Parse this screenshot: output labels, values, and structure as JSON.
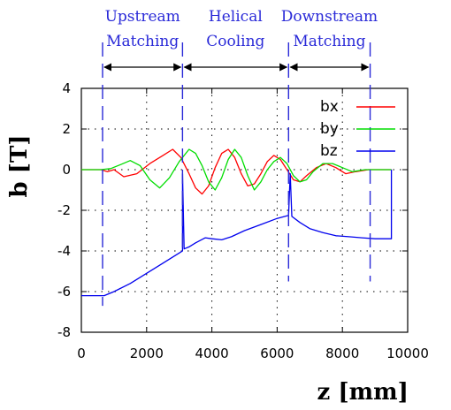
{
  "chart_data": {
    "type": "line",
    "title": "",
    "xlabel": "z [mm]",
    "ylabel": "b [T]",
    "xlim": [
      0,
      10000
    ],
    "ylim": [
      -8,
      4
    ],
    "xticks": [
      0,
      2000,
      4000,
      6000,
      8000,
      10000
    ],
    "yticks": [
      -8,
      -6,
      -4,
      -2,
      0,
      2,
      4
    ],
    "grid": true,
    "legend": "top-right",
    "regions": [
      {
        "label_line1": "Upstream",
        "label_line2": "Matching",
        "z_start": 650,
        "z_end": 3100
      },
      {
        "label_line1": "Helical",
        "label_line2": "Cooling",
        "z_start": 3100,
        "z_end": 6350
      },
      {
        "label_line1": "Downstream",
        "label_line2": "Matching",
        "z_start": 6350,
        "z_end": 8850
      }
    ],
    "boundaries": [
      650,
      3100,
      6350,
      8850
    ],
    "series": [
      {
        "name": "bx",
        "color": "#ff0000",
        "points": [
          [
            0,
            0
          ],
          [
            600,
            0
          ],
          [
            800,
            -0.1
          ],
          [
            1000,
            0
          ],
          [
            1300,
            -0.35
          ],
          [
            1700,
            -0.2
          ],
          [
            2100,
            0.3
          ],
          [
            2500,
            0.7
          ],
          [
            2800,
            1.0
          ],
          [
            3050,
            0.6
          ],
          [
            3300,
            -0.2
          ],
          [
            3500,
            -0.9
          ],
          [
            3700,
            -1.2
          ],
          [
            3900,
            -0.8
          ],
          [
            4100,
            0.1
          ],
          [
            4300,
            0.8
          ],
          [
            4500,
            1.0
          ],
          [
            4700,
            0.6
          ],
          [
            4900,
            -0.2
          ],
          [
            5100,
            -0.8
          ],
          [
            5300,
            -0.7
          ],
          [
            5500,
            -0.2
          ],
          [
            5700,
            0.4
          ],
          [
            5900,
            0.7
          ],
          [
            6100,
            0.5
          ],
          [
            6300,
            0.0
          ],
          [
            6500,
            -0.5
          ],
          [
            6700,
            -0.6
          ],
          [
            6900,
            -0.3
          ],
          [
            7200,
            0.1
          ],
          [
            7500,
            0.3
          ],
          [
            7800,
            0.1
          ],
          [
            8100,
            -0.2
          ],
          [
            8400,
            -0.1
          ],
          [
            8800,
            0
          ],
          [
            9500,
            0
          ]
        ]
      },
      {
        "name": "by",
        "color": "#00dd00",
        "points": [
          [
            0,
            0
          ],
          [
            600,
            0
          ],
          [
            900,
            0.05
          ],
          [
            1200,
            0.25
          ],
          [
            1500,
            0.45
          ],
          [
            1800,
            0.2
          ],
          [
            2100,
            -0.5
          ],
          [
            2400,
            -0.9
          ],
          [
            2700,
            -0.4
          ],
          [
            3000,
            0.4
          ],
          [
            3300,
            1.0
          ],
          [
            3500,
            0.8
          ],
          [
            3700,
            0.2
          ],
          [
            3900,
            -0.6
          ],
          [
            4100,
            -1.0
          ],
          [
            4300,
            -0.4
          ],
          [
            4500,
            0.5
          ],
          [
            4700,
            1.0
          ],
          [
            4900,
            0.6
          ],
          [
            5100,
            -0.3
          ],
          [
            5300,
            -1.0
          ],
          [
            5500,
            -0.6
          ],
          [
            5700,
            0.0
          ],
          [
            5900,
            0.4
          ],
          [
            6100,
            0.6
          ],
          [
            6300,
            0.3
          ],
          [
            6500,
            -0.3
          ],
          [
            6700,
            -0.6
          ],
          [
            6900,
            -0.5
          ],
          [
            7100,
            -0.1
          ],
          [
            7400,
            0.3
          ],
          [
            7700,
            0.3
          ],
          [
            8000,
            0.1
          ],
          [
            8300,
            -0.1
          ],
          [
            8700,
            0
          ],
          [
            9500,
            0
          ]
        ]
      },
      {
        "name": "bz",
        "color": "#0000ee",
        "points": [
          [
            0,
            -6.2
          ],
          [
            700,
            -6.2
          ],
          [
            1000,
            -6.0
          ],
          [
            1500,
            -5.6
          ],
          [
            2000,
            -5.1
          ],
          [
            2500,
            -4.6
          ],
          [
            3000,
            -4.1
          ],
          [
            3100,
            -4.0
          ],
          [
            3100,
            -0.2
          ],
          [
            3150,
            -3.9
          ],
          [
            3300,
            -3.8
          ],
          [
            3500,
            -3.6
          ],
          [
            3800,
            -3.35
          ],
          [
            4000,
            -3.4
          ],
          [
            4300,
            -3.45
          ],
          [
            4600,
            -3.3
          ],
          [
            5000,
            -3.0
          ],
          [
            5500,
            -2.7
          ],
          [
            6000,
            -2.4
          ],
          [
            6350,
            -2.25
          ],
          [
            6400,
            -0.2
          ],
          [
            6450,
            -2.3
          ],
          [
            6700,
            -2.6
          ],
          [
            7000,
            -2.9
          ],
          [
            7400,
            -3.1
          ],
          [
            7800,
            -3.25
          ],
          [
            8200,
            -3.3
          ],
          [
            8600,
            -3.35
          ],
          [
            9000,
            -3.4
          ],
          [
            9500,
            -3.4
          ],
          [
            9500,
            0
          ]
        ]
      }
    ]
  }
}
